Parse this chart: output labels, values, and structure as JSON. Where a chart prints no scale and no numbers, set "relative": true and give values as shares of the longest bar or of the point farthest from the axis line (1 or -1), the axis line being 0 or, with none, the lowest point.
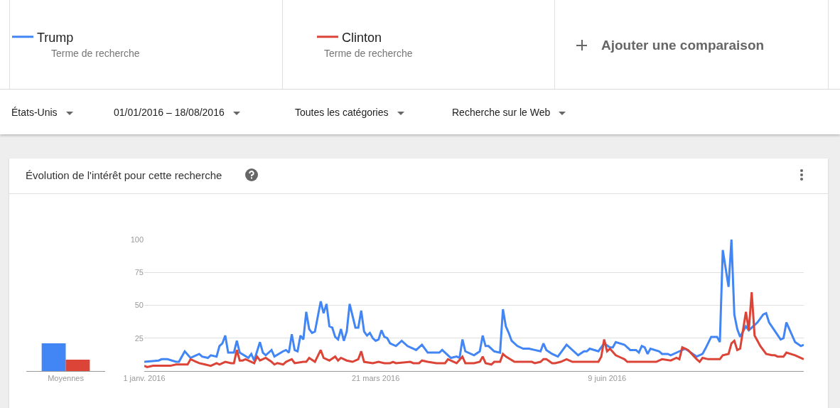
{
  "chart_data": [
    {
      "type": "other",
      "annotations": [
        "Terme de recherche",
        "Terme de recherche",
        "Ajouter une comparaison",
        "États-Unis",
        "01/01/2016 – 18/08/2016",
        "Toutes les catégories",
        "Recherche sur le Web"
      ]
    },
    {
      "type": "line",
      "title": "Évolution de l'intérêt pour cette recherche",
      "legend": "top",
      "grid": "y",
      "xlim": [
        "2016-01-01",
        "2016-08-16"
      ],
      "ylim": [
        0,
        100
      ],
      "yticks": [
        25,
        50,
        75,
        100
      ],
      "xticks": [
        {
          "value": "2016-01-01",
          "label": "1 janv. 2016"
        },
        {
          "value": "2016-03-21",
          "label": "21 mars 2016"
        },
        {
          "value": "2016-06-09",
          "label": "9 juin 2016"
        }
      ],
      "series": [
        {
          "name": "Trump",
          "color": "#4285f4",
          "x": [
            "2016-01-01",
            "2016-01-06",
            "2016-01-07",
            "2016-01-09",
            "2016-01-12",
            "2016-01-13",
            "2016-01-15",
            "2016-01-17",
            "2016-01-18",
            "2016-01-20",
            "2016-01-21",
            "2016-01-23",
            "2016-01-24",
            "2016-01-26",
            "2016-01-27",
            "2016-01-28",
            "2016-01-29",
            "2016-01-30",
            "2016-02-01",
            "2016-02-02",
            "2016-02-03",
            "2016-02-06",
            "2016-02-07",
            "2016-02-08",
            "2016-02-10",
            "2016-02-11",
            "2016-02-12",
            "2016-02-14",
            "2016-02-15",
            "2016-02-18",
            "2016-02-19",
            "2016-02-20",
            "2016-02-21",
            "2016-02-22",
            "2016-02-23",
            "2016-02-24",
            "2016-02-25",
            "2016-02-26",
            "2016-02-27",
            "2016-02-28",
            "2016-02-29",
            "2016-03-02",
            "2016-03-03",
            "2016-03-04",
            "2016-03-05",
            "2016-03-06",
            "2016-03-07",
            "2016-03-08",
            "2016-03-09",
            "2016-03-10",
            "2016-03-11",
            "2016-03-12",
            "2016-03-14",
            "2016-03-15",
            "2016-03-16",
            "2016-03-17",
            "2016-03-18",
            "2016-03-19",
            "2016-03-20",
            "2016-03-21",
            "2016-03-22",
            "2016-03-23",
            "2016-03-24",
            "2016-03-25",
            "2016-03-26",
            "2016-03-28",
            "2016-03-30",
            "2016-04-01",
            "2016-04-04",
            "2016-04-06",
            "2016-04-08",
            "2016-04-12",
            "2016-04-13",
            "2016-04-16",
            "2016-04-18",
            "2016-04-19",
            "2016-04-20",
            "2016-04-21",
            "2016-04-24",
            "2016-04-26",
            "2016-04-27",
            "2016-04-28",
            "2016-04-29",
            "2016-05-01",
            "2016-05-03",
            "2016-05-04",
            "2016-05-05",
            "2016-05-06",
            "2016-05-07",
            "2016-05-09",
            "2016-05-11",
            "2016-05-13",
            "2016-05-15",
            "2016-05-17",
            "2016-05-18",
            "2016-05-19",
            "2016-05-21",
            "2016-05-23",
            "2016-05-26",
            "2016-05-30",
            "2016-06-01",
            "2016-06-02",
            "2016-06-03",
            "2016-06-06",
            "2016-06-08",
            "2016-06-10",
            "2016-06-11",
            "2016-06-12",
            "2016-06-15",
            "2016-06-17",
            "2016-06-19",
            "2016-06-20",
            "2016-06-21",
            "2016-06-22",
            "2016-06-23",
            "2016-06-24",
            "2016-06-27",
            "2016-06-28",
            "2016-06-30",
            "2016-07-01",
            "2016-07-04",
            "2016-07-06",
            "2016-07-10",
            "2016-07-12",
            "2016-07-13",
            "2016-07-15",
            "2016-07-17",
            "2016-07-18",
            "2016-07-19",
            "2016-07-21",
            "2016-07-22",
            "2016-07-23",
            "2016-07-24",
            "2016-07-25",
            "2016-07-27",
            "2016-07-28",
            "2016-07-31",
            "2016-08-02",
            "2016-08-03",
            "2016-08-04",
            "2016-08-08",
            "2016-08-09",
            "2016-08-10",
            "2016-08-11",
            "2016-08-13",
            "2016-08-15",
            "2016-08-16"
          ],
          "values": [
            7,
            8,
            9,
            9,
            7,
            7,
            15,
            10,
            11,
            13,
            11,
            10,
            12,
            11,
            19,
            21,
            27,
            14,
            14,
            23,
            14,
            10,
            13,
            8,
            22,
            14,
            12,
            16,
            11,
            15,
            16,
            14,
            28,
            16,
            15,
            27,
            24,
            45,
            32,
            29,
            30,
            53,
            44,
            51,
            34,
            33,
            26,
            24,
            32,
            23,
            30,
            51,
            33,
            33,
            46,
            30,
            27,
            29,
            25,
            23,
            24,
            31,
            26,
            25,
            21,
            19,
            23,
            19,
            16,
            20,
            14,
            14,
            16,
            10,
            11,
            10,
            24,
            15,
            12,
            15,
            27,
            19,
            19,
            15,
            14,
            47,
            34,
            29,
            23,
            19,
            17,
            17,
            16,
            15,
            21,
            16,
            13,
            11,
            20,
            12,
            15,
            15,
            17,
            15,
            21,
            18,
            18,
            22,
            20,
            16,
            16,
            14,
            19,
            18,
            13,
            17,
            15,
            13,
            13,
            12,
            15,
            17,
            11,
            13,
            17,
            26,
            26,
            22,
            92,
            64,
            100,
            43,
            32,
            26,
            34,
            31,
            37,
            43,
            44,
            37,
            24,
            25,
            37,
            32,
            22,
            19,
            20
          ]
        },
        {
          "name": "Clinton",
          "color": "#db4437",
          "x": [
            "2016-01-01",
            "2016-01-02",
            "2016-01-04",
            "2016-01-10",
            "2016-01-12",
            "2016-01-16",
            "2016-01-17",
            "2016-01-19",
            "2016-01-20",
            "2016-01-22",
            "2016-01-24",
            "2016-01-26",
            "2016-01-27",
            "2016-01-29",
            "2016-01-31",
            "2016-02-01",
            "2016-02-02",
            "2016-02-03",
            "2016-02-04",
            "2016-02-05",
            "2016-02-07",
            "2016-02-08",
            "2016-02-09",
            "2016-02-10",
            "2016-02-12",
            "2016-02-14",
            "2016-02-15",
            "2016-02-16",
            "2016-02-18",
            "2016-02-19",
            "2016-02-21",
            "2016-02-22",
            "2016-02-25",
            "2016-02-26",
            "2016-02-27",
            "2016-02-29",
            "2016-03-02",
            "2016-03-03",
            "2016-03-05",
            "2016-03-07",
            "2016-03-08",
            "2016-03-09",
            "2016-03-11",
            "2016-03-13",
            "2016-03-15",
            "2016-03-16",
            "2016-03-17",
            "2016-03-20",
            "2016-03-22",
            "2016-03-24",
            "2016-03-26",
            "2016-03-27",
            "2016-03-28",
            "2016-04-02",
            "2016-04-03",
            "2016-04-05",
            "2016-04-06",
            "2016-04-08",
            "2016-04-11",
            "2016-04-14",
            "2016-04-15",
            "2016-04-17",
            "2016-04-18",
            "2016-04-20",
            "2016-04-21",
            "2016-04-24",
            "2016-04-26",
            "2016-04-27",
            "2016-04-28",
            "2016-04-30",
            "2016-05-01",
            "2016-05-03",
            "2016-05-04",
            "2016-05-05",
            "2016-05-08",
            "2016-05-10",
            "2016-05-12",
            "2016-05-13",
            "2016-05-14",
            "2016-05-15",
            "2016-05-17",
            "2016-05-18",
            "2016-05-19",
            "2016-05-21",
            "2016-05-22",
            "2016-05-24",
            "2016-05-26",
            "2016-05-28",
            "2016-05-30",
            "2016-06-01",
            "2016-06-03",
            "2016-06-04",
            "2016-06-06",
            "2016-06-07",
            "2016-06-08",
            "2016-06-09",
            "2016-06-10",
            "2016-06-12",
            "2016-06-14",
            "2016-06-15",
            "2016-06-16",
            "2016-06-19",
            "2016-06-21",
            "2016-06-22",
            "2016-06-24",
            "2016-06-26",
            "2016-06-28",
            "2016-07-01",
            "2016-07-03",
            "2016-07-04",
            "2016-07-05",
            "2016-07-07",
            "2016-07-10",
            "2016-07-11",
            "2016-07-12",
            "2016-07-14",
            "2016-07-18",
            "2016-07-19",
            "2016-07-21",
            "2016-07-22",
            "2016-07-23",
            "2016-07-24",
            "2016-07-25",
            "2016-07-27",
            "2016-07-28",
            "2016-07-29",
            "2016-07-30",
            "2016-08-01",
            "2016-08-03",
            "2016-08-05",
            "2016-08-06",
            "2016-08-07",
            "2016-08-09",
            "2016-08-10",
            "2016-08-13",
            "2016-08-16"
          ],
          "values": [
            4,
            3,
            4,
            4,
            5,
            5,
            9,
            7,
            6,
            5,
            4,
            6,
            5,
            7,
            6,
            6,
            16,
            8,
            8,
            9,
            7,
            6,
            11,
            8,
            10,
            7,
            5,
            6,
            5,
            7,
            9,
            6,
            7,
            7,
            10,
            7,
            16,
            10,
            8,
            11,
            8,
            10,
            8,
            7,
            9,
            15,
            7,
            6,
            7,
            6,
            6,
            7,
            6,
            7,
            6,
            6,
            8,
            7,
            6,
            6,
            9,
            7,
            6,
            11,
            6,
            6,
            7,
            11,
            6,
            5,
            7,
            7,
            13,
            11,
            7,
            7,
            7,
            7,
            7,
            6,
            7,
            9,
            9,
            6,
            6,
            7,
            9,
            7,
            7,
            7,
            7,
            7,
            7,
            11,
            24,
            15,
            17,
            12,
            10,
            9,
            7,
            7,
            7,
            7,
            7,
            7,
            9,
            8,
            10,
            9,
            18,
            16,
            9,
            7,
            10,
            9,
            9,
            12,
            13,
            21,
            23,
            16,
            17,
            45,
            31,
            60,
            27,
            19,
            13,
            12,
            12,
            11,
            11,
            14,
            12,
            9
          ]
        }
      ]
    },
    {
      "type": "bar",
      "relative": true,
      "categories": [
        "Moyennes"
      ],
      "series": [
        {
          "color": "#4285f4",
          "values": [
            1
          ]
        },
        {
          "color": "#db4437",
          "values": [
            0.41
          ]
        }
      ]
    }
  ]
}
